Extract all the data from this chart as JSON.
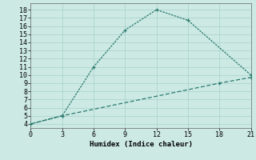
{
  "line1_x": [
    0,
    3,
    6,
    9,
    12,
    15,
    21
  ],
  "line1_y": [
    4,
    5,
    11,
    15.5,
    18,
    16.7,
    10
  ],
  "line2_x": [
    0,
    3,
    18,
    21
  ],
  "line2_y": [
    4,
    5,
    9,
    9.7
  ],
  "color": "#2a7a6e",
  "bg_color": "#cce9e4",
  "grid_color": "#aed4ce",
  "xlabel": "Humidex (Indice chaleur)",
  "xlim": [
    0,
    21
  ],
  "ylim": [
    3.5,
    18.8
  ],
  "xticks": [
    0,
    3,
    6,
    9,
    12,
    15,
    18,
    21
  ],
  "yticks": [
    4,
    5,
    6,
    7,
    8,
    9,
    10,
    11,
    12,
    13,
    14,
    15,
    16,
    17,
    18
  ],
  "label_fontsize": 6.5,
  "tick_fontsize": 6.0
}
